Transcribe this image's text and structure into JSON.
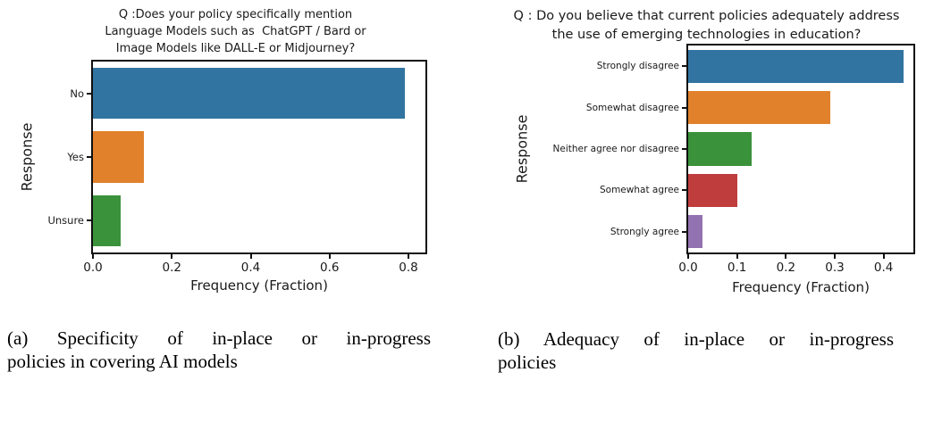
{
  "page": {
    "background": "#ffffff",
    "text_color": "#1a1a1a"
  },
  "chart_data": [
    {
      "id": "a",
      "type": "bar",
      "orientation": "horizontal",
      "title": "Q :Does your policy specifically mention\nLanguage Models such as  ChatGPT / Bard or\nImage Models like DALL-E or Midjourney?",
      "ylabel": "Response",
      "xlabel": "Frequency (Fraction)",
      "categories": [
        "No",
        "Yes",
        "Unsure"
      ],
      "values": [
        0.79,
        0.13,
        0.07
      ],
      "bar_colors": [
        "#3274a1",
        "#e1812c",
        "#3a923a"
      ],
      "xlim": [
        0,
        0.843
      ],
      "xticks": [
        "0.0",
        "0.2",
        "0.4",
        "0.6",
        "0.8"
      ],
      "grid": false,
      "legend": false
    },
    {
      "id": "b",
      "type": "bar",
      "orientation": "horizontal",
      "title": "Q : Do you believe that current policies adequately address\nthe use of emerging technologies in education?",
      "ylabel": "Response",
      "xlabel": "Frequency (Fraction)",
      "categories": [
        "Strongly disagree",
        "Somewhat disagree",
        "Neither agree nor disagree",
        "Somewhat agree",
        "Strongly agree"
      ],
      "values": [
        0.44,
        0.29,
        0.13,
        0.1,
        0.03
      ],
      "bar_colors": [
        "#3274a1",
        "#e1812c",
        "#3a923a",
        "#c03d3e",
        "#9372b2"
      ],
      "xlim": [
        0,
        0.461
      ],
      "xticks": [
        "0.0",
        "0.1",
        "0.2",
        "0.3",
        "0.4"
      ],
      "grid": false,
      "legend": false
    }
  ],
  "captions": [
    {
      "line1": "(a) Specificity of in-place or in-progress",
      "line2": "policies in covering AI models"
    },
    {
      "line1": "(b) Adequacy of in-place or in-progress",
      "line2": "policies"
    }
  ]
}
